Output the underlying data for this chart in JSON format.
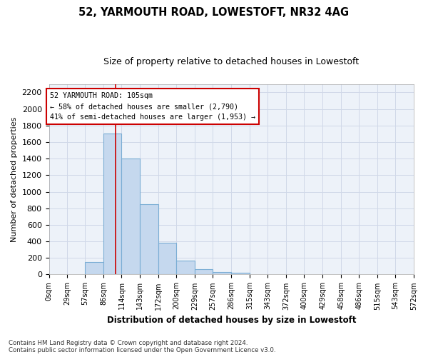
{
  "title1": "52, YARMOUTH ROAD, LOWESTOFT, NR32 4AG",
  "title2": "Size of property relative to detached houses in Lowestoft",
  "xlabel": "Distribution of detached houses by size in Lowestoft",
  "ylabel": "Number of detached properties",
  "footnote1": "Contains HM Land Registry data © Crown copyright and database right 2024.",
  "footnote2": "Contains public sector information licensed under the Open Government Licence v3.0.",
  "bin_edges": [
    0,
    29,
    57,
    86,
    114,
    143,
    172,
    200,
    229,
    257,
    286,
    315,
    343,
    372,
    400,
    429,
    458,
    486,
    515,
    543,
    572
  ],
  "bar_heights": [
    0,
    0,
    150,
    1700,
    1400,
    850,
    380,
    165,
    60,
    30,
    25,
    0,
    0,
    0,
    0,
    0,
    0,
    0,
    0,
    0
  ],
  "bar_color": "#c5d8ee",
  "bar_edge_color": "#7aadd4",
  "property_size": 105,
  "red_line_color": "#cc0000",
  "annotation_text_line1": "52 YARMOUTH ROAD: 105sqm",
  "annotation_text_line2": "← 58% of detached houses are smaller (2,790)",
  "annotation_text_line3": "41% of semi-detached houses are larger (1,953) →",
  "annotation_box_color": "#cc0000",
  "ylim": [
    0,
    2300
  ],
  "yticks": [
    0,
    200,
    400,
    600,
    800,
    1000,
    1200,
    1400,
    1600,
    1800,
    2000,
    2200
  ],
  "grid_color": "#d0d8e8",
  "background_color": "#ffffff",
  "plot_bg_color": "#edf2f9"
}
